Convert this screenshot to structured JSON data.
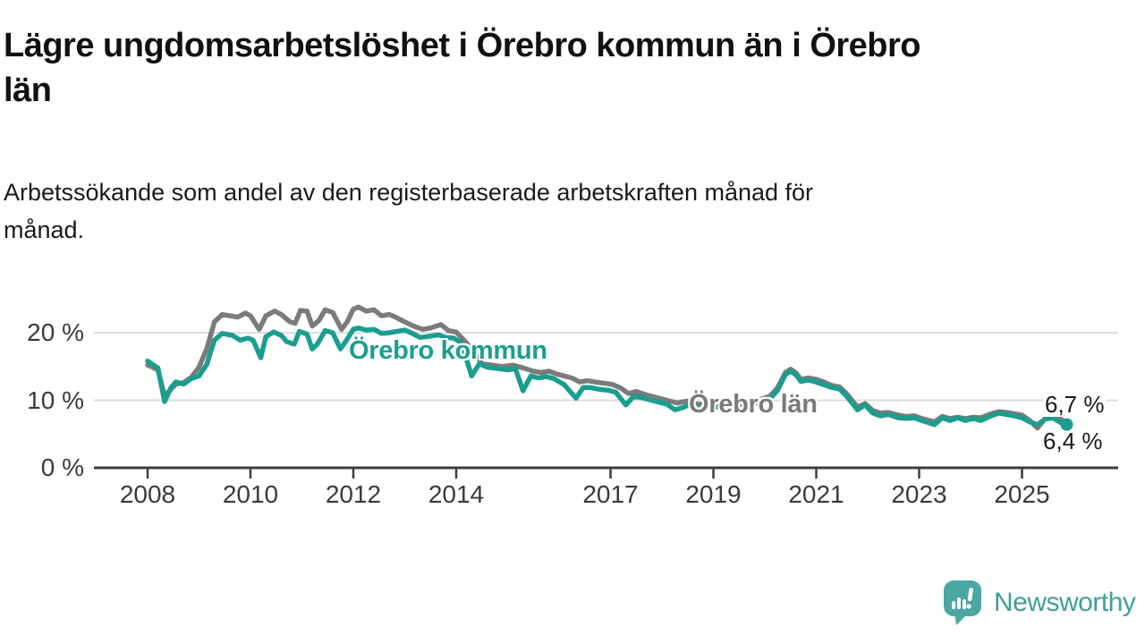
{
  "title": "Lägre ungdomsarbetslöshet i Örebro kommun än i Örebro\nlän",
  "subtitle": "Arbetssökande som andel av den registerbaserade arbetskraften månad för\nmånad.",
  "footer": {
    "brand": "Newsworthy"
  },
  "colors": {
    "kommun_line": "#1b9e8f",
    "lan_line": "#7b7b7b",
    "gridline": "#dcdcdc",
    "axis": "#3d3d3d",
    "axis_text": "#3a3a3a",
    "end_label_text": "#1a1a1a",
    "logo_icon": "#4ca7a2",
    "logo_text": "#3f9f9b",
    "background": "#ffffff"
  },
  "chart_data": {
    "type": "line",
    "title": "Lägre ungdomsarbetslöshet i Örebro kommun än i Örebro län",
    "subtitle": "Arbetssökande som andel av den registerbaserade arbetskraften månad för månad.",
    "xlabel": "",
    "ylabel": "",
    "unit": "%",
    "ylim": [
      0,
      25
    ],
    "xlim": [
      2007,
      2026.9
    ],
    "grid": "horizontal",
    "legend_position": "inline-labels",
    "y_ticks": [
      {
        "value": 0,
        "label": "0 %"
      },
      {
        "value": 10,
        "label": "10 %"
      },
      {
        "value": 20,
        "label": "20 %"
      }
    ],
    "x_ticks": [
      {
        "year": 2008,
        "label": "2008"
      },
      {
        "year": 2010,
        "label": "2010"
      },
      {
        "year": 2012,
        "label": "2012"
      },
      {
        "year": 2014,
        "label": "2014"
      },
      {
        "year": 2017,
        "label": "2017"
      },
      {
        "year": 2019,
        "label": "2019"
      },
      {
        "year": 2021,
        "label": "2021"
      },
      {
        "year": 2023,
        "label": "2023"
      },
      {
        "year": 2025,
        "label": "2025"
      }
    ],
    "end_labels": {
      "lan": "6,7 %",
      "kommun": "6,4 %"
    },
    "series": [
      {
        "name": "Örebro län",
        "color": "#7b7b7b",
        "end_value": 6.7,
        "points": [
          [
            2008.0,
            15.2
          ],
          [
            2008.1,
            14.9
          ],
          [
            2008.2,
            14.5
          ],
          [
            2008.33,
            10.6
          ],
          [
            2008.45,
            11.6
          ],
          [
            2008.55,
            12.4
          ],
          [
            2008.7,
            12.6
          ],
          [
            2008.85,
            13.4
          ],
          [
            2009.0,
            14.9
          ],
          [
            2009.15,
            17.6
          ],
          [
            2009.3,
            21.6
          ],
          [
            2009.45,
            22.7
          ],
          [
            2009.6,
            22.5
          ],
          [
            2009.75,
            22.3
          ],
          [
            2009.9,
            22.9
          ],
          [
            2010.0,
            22.5
          ],
          [
            2010.17,
            20.5
          ],
          [
            2010.3,
            22.5
          ],
          [
            2010.47,
            23.2
          ],
          [
            2010.6,
            22.7
          ],
          [
            2010.77,
            21.6
          ],
          [
            2010.87,
            21.4
          ],
          [
            2010.97,
            23.3
          ],
          [
            2011.1,
            23.2
          ],
          [
            2011.2,
            21.0
          ],
          [
            2011.33,
            21.8
          ],
          [
            2011.45,
            23.4
          ],
          [
            2011.6,
            23.0
          ],
          [
            2011.77,
            20.5
          ],
          [
            2011.88,
            21.6
          ],
          [
            2012.0,
            23.5
          ],
          [
            2012.1,
            23.8
          ],
          [
            2012.25,
            23.2
          ],
          [
            2012.4,
            23.4
          ],
          [
            2012.55,
            22.5
          ],
          [
            2012.7,
            22.7
          ],
          [
            2012.85,
            22.2
          ],
          [
            2013.0,
            21.6
          ],
          [
            2013.2,
            20.9
          ],
          [
            2013.35,
            20.5
          ],
          [
            2013.5,
            20.7
          ],
          [
            2013.7,
            21.2
          ],
          [
            2013.85,
            20.3
          ],
          [
            2014.0,
            20.1
          ],
          [
            2014.2,
            18.5
          ],
          [
            2014.35,
            17.0
          ],
          [
            2014.5,
            15.4
          ],
          [
            2014.7,
            15.2
          ],
          [
            2014.9,
            15.0
          ],
          [
            2015.1,
            15.2
          ],
          [
            2015.3,
            14.8
          ],
          [
            2015.5,
            14.3
          ],
          [
            2015.65,
            14.1
          ],
          [
            2015.8,
            14.3
          ],
          [
            2015.95,
            13.9
          ],
          [
            2016.1,
            13.6
          ],
          [
            2016.25,
            13.3
          ],
          [
            2016.4,
            12.7
          ],
          [
            2016.55,
            12.9
          ],
          [
            2016.7,
            12.7
          ],
          [
            2016.9,
            12.5
          ],
          [
            2017.05,
            12.3
          ],
          [
            2017.2,
            11.8
          ],
          [
            2017.35,
            11.0
          ],
          [
            2017.5,
            11.3
          ],
          [
            2017.7,
            10.8
          ],
          [
            2017.9,
            10.4
          ],
          [
            2018.1,
            10.0
          ],
          [
            2018.3,
            9.6
          ],
          [
            2018.5,
            9.9
          ],
          [
            2018.7,
            9.4
          ],
          [
            2018.9,
            9.5
          ],
          [
            2019.1,
            9.4
          ],
          [
            2019.3,
            9.5
          ],
          [
            2019.5,
            9.6
          ],
          [
            2019.7,
            9.8
          ],
          [
            2019.9,
            10.1
          ],
          [
            2020.1,
            10.6
          ],
          [
            2020.25,
            11.9
          ],
          [
            2020.4,
            14.1
          ],
          [
            2020.5,
            14.6
          ],
          [
            2020.6,
            14.1
          ],
          [
            2020.7,
            13.1
          ],
          [
            2020.85,
            13.3
          ],
          [
            2021.0,
            13.1
          ],
          [
            2021.15,
            12.7
          ],
          [
            2021.3,
            12.2
          ],
          [
            2021.45,
            12.0
          ],
          [
            2021.6,
            10.9
          ],
          [
            2021.8,
            9.0
          ],
          [
            2021.95,
            9.5
          ],
          [
            2022.1,
            8.5
          ],
          [
            2022.25,
            8.1
          ],
          [
            2022.4,
            8.2
          ],
          [
            2022.6,
            7.8
          ],
          [
            2022.75,
            7.6
          ],
          [
            2022.9,
            7.7
          ],
          [
            2023.05,
            7.3
          ],
          [
            2023.3,
            6.8
          ],
          [
            2023.45,
            7.6
          ],
          [
            2023.6,
            7.3
          ],
          [
            2023.75,
            7.5
          ],
          [
            2023.9,
            7.3
          ],
          [
            2024.05,
            7.5
          ],
          [
            2024.2,
            7.4
          ],
          [
            2024.4,
            8.0
          ],
          [
            2024.55,
            8.3
          ],
          [
            2024.7,
            8.2
          ],
          [
            2024.85,
            8.0
          ],
          [
            2025.0,
            7.8
          ],
          [
            2025.15,
            7.0
          ],
          [
            2025.3,
            5.9
          ],
          [
            2025.45,
            7.3
          ],
          [
            2025.6,
            7.9
          ],
          [
            2025.75,
            7.2
          ],
          [
            2025.87,
            6.7
          ]
        ]
      },
      {
        "name": "Örebro kommun",
        "color": "#1b9e8f",
        "end_value": 6.4,
        "end_dot": true,
        "points": [
          [
            2008.0,
            15.8
          ],
          [
            2008.1,
            15.3
          ],
          [
            2008.2,
            14.8
          ],
          [
            2008.33,
            9.8
          ],
          [
            2008.45,
            11.8
          ],
          [
            2008.55,
            12.7
          ],
          [
            2008.7,
            12.4
          ],
          [
            2008.85,
            13.2
          ],
          [
            2009.0,
            13.6
          ],
          [
            2009.15,
            15.3
          ],
          [
            2009.3,
            18.9
          ],
          [
            2009.45,
            19.9
          ],
          [
            2009.65,
            19.6
          ],
          [
            2009.8,
            18.9
          ],
          [
            2009.95,
            19.2
          ],
          [
            2010.05,
            18.9
          ],
          [
            2010.2,
            16.3
          ],
          [
            2010.3,
            19.4
          ],
          [
            2010.45,
            20.1
          ],
          [
            2010.6,
            19.6
          ],
          [
            2010.7,
            18.7
          ],
          [
            2010.85,
            18.3
          ],
          [
            2010.95,
            20.2
          ],
          [
            2011.1,
            19.8
          ],
          [
            2011.2,
            17.6
          ],
          [
            2011.3,
            18.3
          ],
          [
            2011.45,
            20.3
          ],
          [
            2011.6,
            20.0
          ],
          [
            2011.75,
            17.6
          ],
          [
            2011.85,
            18.7
          ],
          [
            2012.0,
            20.5
          ],
          [
            2012.1,
            20.7
          ],
          [
            2012.25,
            20.4
          ],
          [
            2012.4,
            20.5
          ],
          [
            2012.55,
            19.9
          ],
          [
            2012.7,
            20.0
          ],
          [
            2012.85,
            20.2
          ],
          [
            2013.0,
            20.4
          ],
          [
            2013.15,
            19.9
          ],
          [
            2013.3,
            19.3
          ],
          [
            2013.5,
            19.5
          ],
          [
            2013.65,
            19.7
          ],
          [
            2013.8,
            19.3
          ],
          [
            2013.95,
            19.2
          ],
          [
            2014.1,
            18.5
          ],
          [
            2014.3,
            13.6
          ],
          [
            2014.45,
            15.4
          ],
          [
            2014.6,
            14.9
          ],
          [
            2014.8,
            14.7
          ],
          [
            2015.0,
            14.5
          ],
          [
            2015.15,
            14.7
          ],
          [
            2015.3,
            11.4
          ],
          [
            2015.45,
            13.6
          ],
          [
            2015.6,
            13.3
          ],
          [
            2015.75,
            13.5
          ],
          [
            2015.9,
            13.2
          ],
          [
            2016.1,
            12.3
          ],
          [
            2016.33,
            10.3
          ],
          [
            2016.47,
            11.9
          ],
          [
            2016.6,
            11.9
          ],
          [
            2016.8,
            11.6
          ],
          [
            2016.95,
            11.5
          ],
          [
            2017.1,
            11.2
          ],
          [
            2017.3,
            9.3
          ],
          [
            2017.45,
            10.6
          ],
          [
            2017.6,
            10.4
          ],
          [
            2017.8,
            10.0
          ],
          [
            2017.95,
            9.7
          ],
          [
            2018.1,
            9.4
          ],
          [
            2018.25,
            8.6
          ],
          [
            2018.4,
            8.9
          ],
          [
            2018.55,
            9.4
          ],
          [
            2018.7,
            8.8
          ],
          [
            2018.9,
            9.1
          ],
          [
            2019.1,
            9.0
          ],
          [
            2019.3,
            9.2
          ],
          [
            2019.5,
            9.3
          ],
          [
            2019.7,
            9.5
          ],
          [
            2019.9,
            9.7
          ],
          [
            2020.1,
            10.2
          ],
          [
            2020.25,
            11.5
          ],
          [
            2020.4,
            13.8
          ],
          [
            2020.5,
            14.3
          ],
          [
            2020.6,
            13.8
          ],
          [
            2020.7,
            12.8
          ],
          [
            2020.85,
            13.0
          ],
          [
            2021.0,
            12.7
          ],
          [
            2021.15,
            12.3
          ],
          [
            2021.3,
            11.9
          ],
          [
            2021.45,
            11.7
          ],
          [
            2021.6,
            10.5
          ],
          [
            2021.8,
            8.6
          ],
          [
            2021.95,
            9.3
          ],
          [
            2022.1,
            8.1
          ],
          [
            2022.25,
            7.7
          ],
          [
            2022.4,
            7.9
          ],
          [
            2022.6,
            7.4
          ],
          [
            2022.75,
            7.3
          ],
          [
            2022.9,
            7.4
          ],
          [
            2023.05,
            7.0
          ],
          [
            2023.3,
            6.4
          ],
          [
            2023.45,
            7.4
          ],
          [
            2023.6,
            7.0
          ],
          [
            2023.75,
            7.4
          ],
          [
            2023.9,
            7.0
          ],
          [
            2024.05,
            7.3
          ],
          [
            2024.2,
            7.0
          ],
          [
            2024.4,
            7.7
          ],
          [
            2024.55,
            8.1
          ],
          [
            2024.7,
            7.9
          ],
          [
            2024.85,
            7.7
          ],
          [
            2025.0,
            7.4
          ],
          [
            2025.15,
            6.8
          ],
          [
            2025.3,
            6.4
          ],
          [
            2025.45,
            7.2
          ],
          [
            2025.6,
            7.4
          ],
          [
            2025.75,
            6.7
          ],
          [
            2025.87,
            6.4
          ]
        ]
      }
    ]
  }
}
